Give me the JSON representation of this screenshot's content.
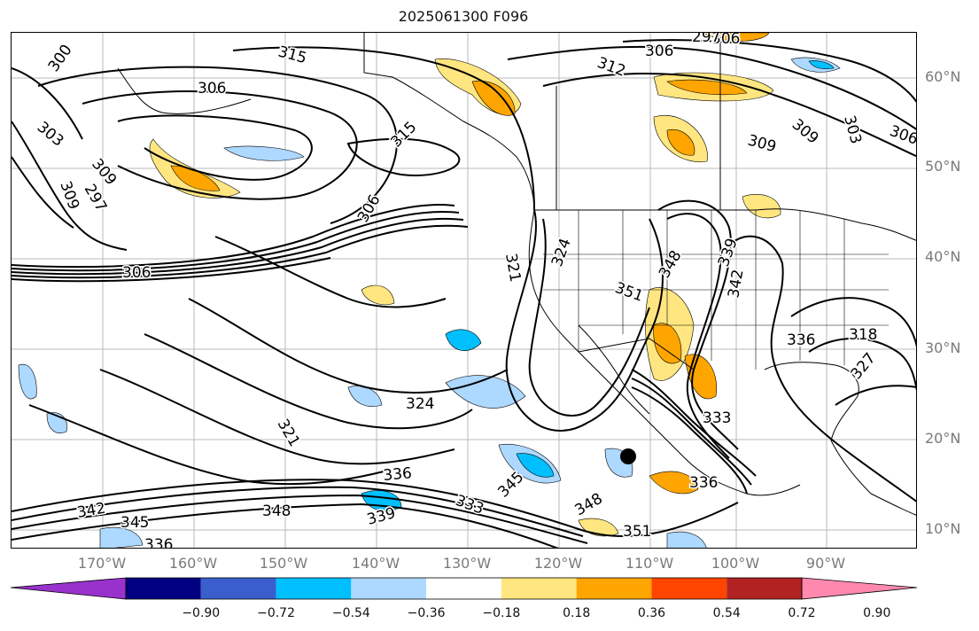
{
  "title": "2025061300 F096",
  "lat_labels": [
    "60°N",
    "50°N",
    "40°N",
    "30°N",
    "20°N",
    "10°N"
  ],
  "lon_labels": [
    "170°W",
    "160°W",
    "150°W",
    "140°W",
    "130°W",
    "120°W",
    "110°W",
    "100°W",
    "90°W"
  ],
  "contour_labels": [
    "315",
    "306",
    "297",
    "312",
    "306",
    "300",
    "306",
    "303",
    "309",
    "309",
    "297",
    "315",
    "309",
    "303",
    "306",
    "309",
    "306",
    "306",
    "321",
    "324",
    "351",
    "348",
    "339",
    "342",
    "336",
    "318",
    "327",
    "324",
    "321",
    "336",
    "333",
    "345",
    "336",
    "342",
    "348",
    "339",
    "345",
    "336",
    "348",
    "351",
    "333"
  ],
  "colorbar": {
    "ticks": [
      "−0.90",
      "−0.72",
      "−0.54",
      "−0.36",
      "−0.18",
      "0.18",
      "0.36",
      "0.54",
      "0.72",
      "0.90"
    ],
    "colors": [
      "#9932cc",
      "#000080",
      "#3a5fcd",
      "#00bfff",
      "#add8ff",
      "#ffffff",
      "#ffe680",
      "#ffa500",
      "#ff4500",
      "#b22222",
      "#ff89ae"
    ]
  },
  "marker": "storm-center-dot"
}
